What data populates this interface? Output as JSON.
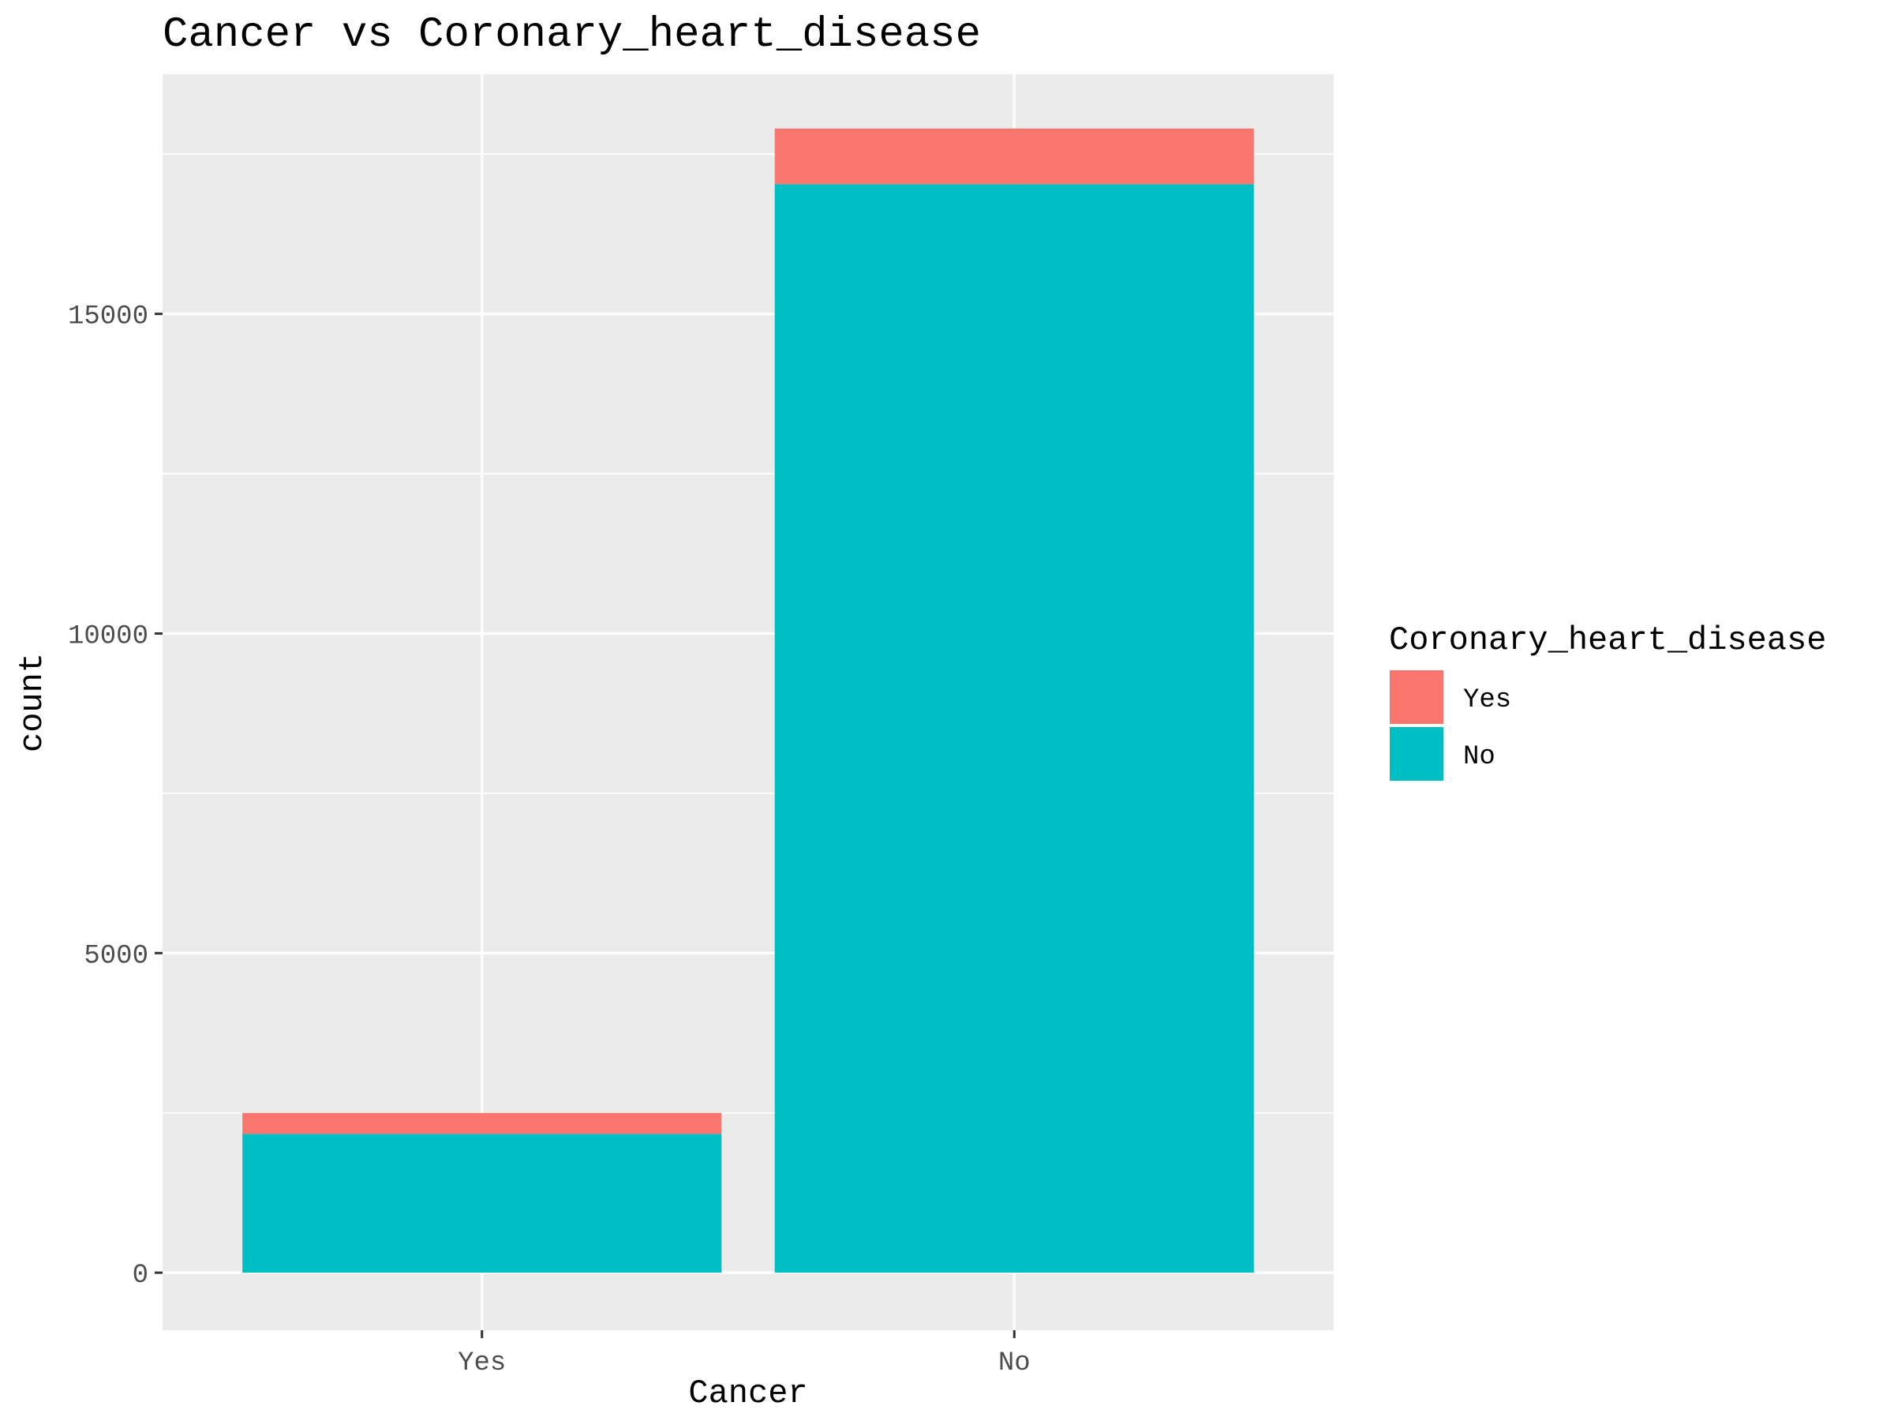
{
  "chart_data": {
    "type": "bar",
    "stacked": true,
    "title": "Cancer vs Coronary_heart_disease",
    "xlabel": "Cancer",
    "ylabel": "count",
    "categories": [
      "Yes",
      "No"
    ],
    "series": [
      {
        "name": "Yes",
        "color": "#F8766D",
        "values": [
          330,
          870
        ]
      },
      {
        "name": "No",
        "color": "#00BFC4",
        "values": [
          2170,
          17030
        ]
      }
    ],
    "yticks": [
      0,
      5000,
      10000,
      15000
    ],
    "ylim": [
      -900,
      18750
    ],
    "grid": true,
    "legend": {
      "title": "Coronary_heart_disease",
      "position": "right",
      "items": [
        {
          "label": "Yes",
          "color": "#F8766D"
        },
        {
          "label": "No",
          "color": "#00BFC4"
        }
      ]
    },
    "panel_background": "#EBEBEB",
    "grid_color": "#FFFFFF"
  }
}
